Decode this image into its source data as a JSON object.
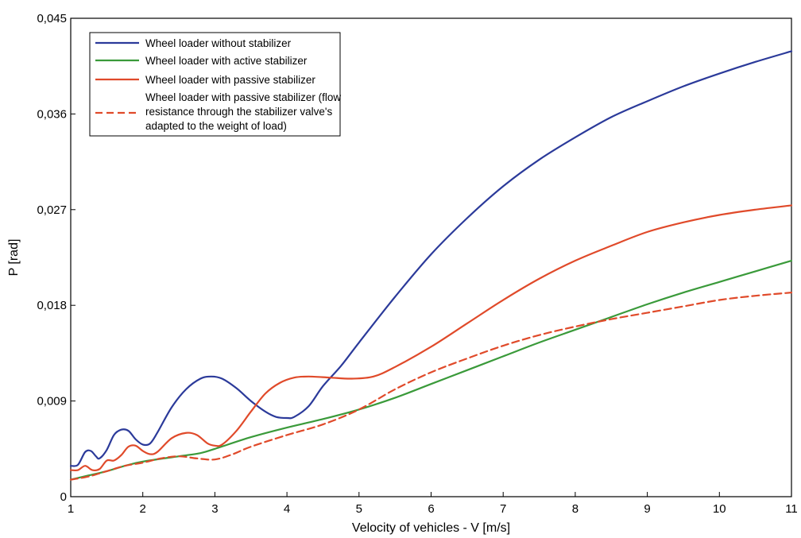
{
  "chart_data": {
    "type": "line",
    "title": "",
    "xlabel": "Velocity of vehicles - V [m/s]",
    "ylabel": "P [rad]",
    "xlim": [
      1,
      11
    ],
    "ylim": [
      0,
      0.045
    ],
    "xticks": [
      1,
      2,
      3,
      4,
      5,
      6,
      7,
      8,
      9,
      10,
      11
    ],
    "yticks": [
      0,
      0.009,
      0.018,
      0.027,
      0.036,
      0.045
    ],
    "xtick_labels": [
      "1",
      "2",
      "3",
      "4",
      "5",
      "6",
      "7",
      "8",
      "9",
      "10",
      "11"
    ],
    "ytick_labels": [
      "0",
      "0,009",
      "0,018",
      "0,027",
      "0,036",
      "0,045"
    ],
    "grid": false,
    "legend_position": "top-left",
    "series": [
      {
        "name": "Wheel loader without stabilizer",
        "color": "#2b3a9a",
        "dash": "solid",
        "points": [
          [
            1.0,
            0.0029
          ],
          [
            1.1,
            0.003
          ],
          [
            1.2,
            0.0042
          ],
          [
            1.28,
            0.0043
          ],
          [
            1.35,
            0.0038
          ],
          [
            1.4,
            0.0036
          ],
          [
            1.5,
            0.0044
          ],
          [
            1.6,
            0.0058
          ],
          [
            1.7,
            0.0063
          ],
          [
            1.8,
            0.0062
          ],
          [
            1.9,
            0.0054
          ],
          [
            2.0,
            0.0049
          ],
          [
            2.1,
            0.005
          ],
          [
            2.2,
            0.006
          ],
          [
            2.4,
            0.0084
          ],
          [
            2.6,
            0.0101
          ],
          [
            2.8,
            0.0111
          ],
          [
            2.95,
            0.0113
          ],
          [
            3.1,
            0.0111
          ],
          [
            3.3,
            0.0102
          ],
          [
            3.5,
            0.009
          ],
          [
            3.7,
            0.008
          ],
          [
            3.85,
            0.0075
          ],
          [
            4.0,
            0.0074
          ],
          [
            4.1,
            0.0075
          ],
          [
            4.3,
            0.0085
          ],
          [
            4.5,
            0.0104
          ],
          [
            4.75,
            0.0123
          ],
          [
            5.0,
            0.0145
          ],
          [
            5.5,
            0.0188
          ],
          [
            6.0,
            0.0228
          ],
          [
            6.5,
            0.0262
          ],
          [
            7.0,
            0.0292
          ],
          [
            7.5,
            0.0317
          ],
          [
            8.0,
            0.0338
          ],
          [
            8.5,
            0.0357
          ],
          [
            9.0,
            0.0372
          ],
          [
            9.5,
            0.0386
          ],
          [
            10.0,
            0.0398
          ],
          [
            10.5,
            0.0409
          ],
          [
            11.0,
            0.0419
          ]
        ]
      },
      {
        "name": "Wheel loader with active stabilizer",
        "color": "#3a9a3a",
        "dash": "solid",
        "points": [
          [
            1.0,
            0.0016
          ],
          [
            1.25,
            0.002
          ],
          [
            1.5,
            0.0024
          ],
          [
            1.75,
            0.0029
          ],
          [
            2.0,
            0.0033
          ],
          [
            2.5,
            0.0038
          ],
          [
            2.8,
            0.0041
          ],
          [
            3.0,
            0.0045
          ],
          [
            3.5,
            0.0056
          ],
          [
            4.0,
            0.0065
          ],
          [
            4.5,
            0.0073
          ],
          [
            5.0,
            0.0082
          ],
          [
            5.5,
            0.0093
          ],
          [
            6.0,
            0.0106
          ],
          [
            6.5,
            0.0119
          ],
          [
            7.0,
            0.0132
          ],
          [
            7.5,
            0.0145
          ],
          [
            8.0,
            0.0157
          ],
          [
            8.5,
            0.0169
          ],
          [
            9.0,
            0.0181
          ],
          [
            9.5,
            0.0192
          ],
          [
            10.0,
            0.0202
          ],
          [
            10.5,
            0.0212
          ],
          [
            11.0,
            0.0222
          ]
        ]
      },
      {
        "name": "Wheel loader with passive stabilizer",
        "color": "#e04a2a",
        "dash": "solid",
        "points": [
          [
            1.0,
            0.0025
          ],
          [
            1.1,
            0.0025
          ],
          [
            1.2,
            0.0029
          ],
          [
            1.3,
            0.0025
          ],
          [
            1.4,
            0.0026
          ],
          [
            1.5,
            0.0034
          ],
          [
            1.6,
            0.0034
          ],
          [
            1.7,
            0.0039
          ],
          [
            1.8,
            0.0047
          ],
          [
            1.9,
            0.0048
          ],
          [
            2.0,
            0.0043
          ],
          [
            2.1,
            0.004
          ],
          [
            2.2,
            0.0042
          ],
          [
            2.4,
            0.0055
          ],
          [
            2.6,
            0.006
          ],
          [
            2.75,
            0.0058
          ],
          [
            2.9,
            0.005
          ],
          [
            3.0,
            0.0048
          ],
          [
            3.1,
            0.0049
          ],
          [
            3.3,
            0.0062
          ],
          [
            3.5,
            0.008
          ],
          [
            3.7,
            0.0097
          ],
          [
            3.9,
            0.0107
          ],
          [
            4.1,
            0.0112
          ],
          [
            4.3,
            0.0113
          ],
          [
            4.6,
            0.0112
          ],
          [
            4.9,
            0.0111
          ],
          [
            5.2,
            0.0113
          ],
          [
            5.5,
            0.0122
          ],
          [
            6.0,
            0.0141
          ],
          [
            6.5,
            0.0163
          ],
          [
            7.0,
            0.0185
          ],
          [
            7.5,
            0.0205
          ],
          [
            8.0,
            0.0222
          ],
          [
            8.5,
            0.0236
          ],
          [
            9.0,
            0.0249
          ],
          [
            9.5,
            0.0258
          ],
          [
            10.0,
            0.0265
          ],
          [
            10.5,
            0.027
          ],
          [
            11.0,
            0.0274
          ]
        ]
      },
      {
        "name": "Wheel loader with passive stabilizer (flow resistance through the stabilizer valve's adapted to the weight of load)",
        "legend_lines": [
          "Wheel loader with passive stabilizer (flow",
          "resistance through the stabilizer valve's",
          "adapted to the weight of load)"
        ],
        "color": "#e04a2a",
        "dash": "dashed",
        "points": [
          [
            1.0,
            0.0016
          ],
          [
            1.25,
            0.0019
          ],
          [
            1.5,
            0.0024
          ],
          [
            1.75,
            0.0029
          ],
          [
            2.0,
            0.0032
          ],
          [
            2.25,
            0.0036
          ],
          [
            2.5,
            0.0038
          ],
          [
            2.75,
            0.0036
          ],
          [
            3.0,
            0.0035
          ],
          [
            3.25,
            0.004
          ],
          [
            3.5,
            0.0047
          ],
          [
            4.0,
            0.0058
          ],
          [
            4.5,
            0.0068
          ],
          [
            5.0,
            0.0082
          ],
          [
            5.5,
            0.0101
          ],
          [
            6.0,
            0.0117
          ],
          [
            6.5,
            0.013
          ],
          [
            7.0,
            0.0142
          ],
          [
            7.5,
            0.0152
          ],
          [
            8.0,
            0.016
          ],
          [
            8.5,
            0.0167
          ],
          [
            9.0,
            0.0173
          ],
          [
            9.5,
            0.0179
          ],
          [
            10.0,
            0.0185
          ],
          [
            10.5,
            0.0189
          ],
          [
            11.0,
            0.0192
          ]
        ]
      }
    ]
  }
}
